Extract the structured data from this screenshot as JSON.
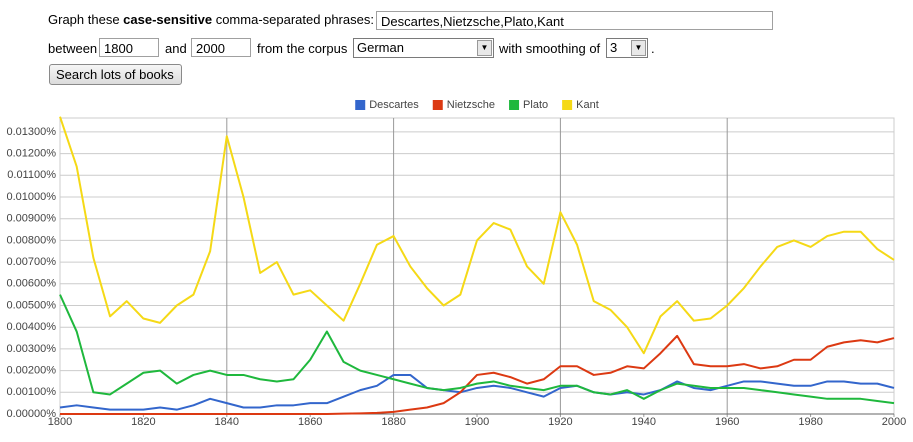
{
  "form": {
    "prefix": "Graph these",
    "bold": "case-sensitive",
    "suffix": "comma-separated phrases:",
    "phrases": "Descartes,Nietzsche,Plato,Kant",
    "between": "between",
    "start": "1800",
    "and": "and",
    "end": "2000",
    "corpus_label": "from the corpus",
    "corpus": "German",
    "smoothing_label": "with smoothing of",
    "smoothing": "3",
    "period": ".",
    "button": "Search lots of books"
  },
  "chart_data": {
    "type": "line",
    "x": [
      1800,
      1804,
      1808,
      1812,
      1816,
      1820,
      1824,
      1828,
      1832,
      1836,
      1840,
      1844,
      1848,
      1852,
      1856,
      1860,
      1864,
      1868,
      1872,
      1876,
      1880,
      1884,
      1888,
      1892,
      1896,
      1900,
      1904,
      1908,
      1912,
      1916,
      1920,
      1924,
      1928,
      1932,
      1936,
      1940,
      1944,
      1948,
      1952,
      1956,
      1960,
      1964,
      1968,
      1972,
      1976,
      1980,
      1984,
      1988,
      1992,
      1996,
      2000
    ],
    "series": [
      {
        "name": "Descartes",
        "color": "#3366cc",
        "values": [
          0.0003,
          0.0004,
          0.0003,
          0.0002,
          0.0002,
          0.0002,
          0.0003,
          0.0002,
          0.0004,
          0.0007,
          0.0005,
          0.0003,
          0.0003,
          0.0004,
          0.0004,
          0.0005,
          0.0005,
          0.0008,
          0.0011,
          0.0013,
          0.0018,
          0.0018,
          0.0012,
          0.0011,
          0.001,
          0.0012,
          0.0013,
          0.0012,
          0.001,
          0.0008,
          0.0012,
          0.0013,
          0.001,
          0.0009,
          0.001,
          0.0009,
          0.0011,
          0.0015,
          0.0012,
          0.0011,
          0.0013,
          0.0015,
          0.0015,
          0.0014,
          0.0013,
          0.0013,
          0.0015,
          0.0015,
          0.0014,
          0.0014,
          0.0012
        ]
      },
      {
        "name": "Nietzsche",
        "color": "#dc3912",
        "values": [
          0,
          0,
          0,
          0,
          0,
          0,
          0,
          0,
          0,
          0,
          0,
          0,
          0,
          0,
          0,
          0,
          0,
          2e-05,
          3e-05,
          5e-05,
          0.0001,
          0.0002,
          0.0003,
          0.0005,
          0.001,
          0.0018,
          0.0019,
          0.0017,
          0.0014,
          0.0016,
          0.0022,
          0.0022,
          0.0018,
          0.0019,
          0.0022,
          0.0021,
          0.0028,
          0.0036,
          0.0023,
          0.0022,
          0.0022,
          0.0023,
          0.0021,
          0.0022,
          0.0025,
          0.0025,
          0.0031,
          0.0033,
          0.0034,
          0.0033,
          0.0035
        ]
      },
      {
        "name": "Plato",
        "color": "#1fb83d",
        "values": [
          0.0055,
          0.0038,
          0.001,
          0.0009,
          0.0014,
          0.0019,
          0.002,
          0.0014,
          0.0018,
          0.002,
          0.0018,
          0.0018,
          0.0016,
          0.0015,
          0.0016,
          0.0025,
          0.0038,
          0.0024,
          0.002,
          0.0018,
          0.0016,
          0.0014,
          0.0012,
          0.0011,
          0.0012,
          0.0014,
          0.0015,
          0.0013,
          0.0012,
          0.0011,
          0.0013,
          0.0013,
          0.001,
          0.0009,
          0.0011,
          0.0007,
          0.0011,
          0.0014,
          0.0013,
          0.0012,
          0.0012,
          0.0012,
          0.0011,
          0.001,
          0.0009,
          0.0008,
          0.0007,
          0.0007,
          0.0007,
          0.0006,
          0.0005
        ]
      },
      {
        "name": "Kant",
        "color": "#f5d916",
        "values": [
          0.0137,
          0.0114,
          0.0072,
          0.0045,
          0.0052,
          0.0044,
          0.0042,
          0.005,
          0.0055,
          0.0075,
          0.0128,
          0.01,
          0.0065,
          0.007,
          0.0055,
          0.0057,
          0.005,
          0.0043,
          0.006,
          0.0078,
          0.0082,
          0.0068,
          0.0058,
          0.005,
          0.0055,
          0.008,
          0.0088,
          0.0085,
          0.0068,
          0.006,
          0.0093,
          0.0078,
          0.0052,
          0.0048,
          0.004,
          0.0028,
          0.0045,
          0.0052,
          0.0043,
          0.0044,
          0.005,
          0.0058,
          0.0068,
          0.0077,
          0.008,
          0.0077,
          0.0082,
          0.0084,
          0.0084,
          0.0076,
          0.0071
        ]
      }
    ],
    "xlim": [
      1800,
      2000
    ],
    "xticks": [
      1800,
      1820,
      1840,
      1860,
      1880,
      1900,
      1920,
      1940,
      1960,
      1980,
      2000
    ],
    "ylim": [
      0,
      0.01364
    ],
    "yticks": [
      {
        "value": 0,
        "label": "0.00000%"
      },
      {
        "value": 0.001,
        "label": "0.00100%"
      },
      {
        "value": 0.002,
        "label": "0.00200%"
      },
      {
        "value": 0.003,
        "label": "0.00300%"
      },
      {
        "value": 0.004,
        "label": "0.00400%"
      },
      {
        "value": 0.005,
        "label": "0.00500%"
      },
      {
        "value": 0.006,
        "label": "0.00600%"
      },
      {
        "value": 0.007,
        "label": "0.00700%"
      },
      {
        "value": 0.008,
        "label": "0.00800%"
      },
      {
        "value": 0.009,
        "label": "0.00900%"
      },
      {
        "value": 0.01,
        "label": "0.01000%"
      },
      {
        "value": 0.011,
        "label": "0.01100%"
      },
      {
        "value": 0.012,
        "label": "0.01200%"
      },
      {
        "value": 0.013,
        "label": "0.01300%"
      }
    ],
    "grid": true,
    "legend": "top"
  }
}
